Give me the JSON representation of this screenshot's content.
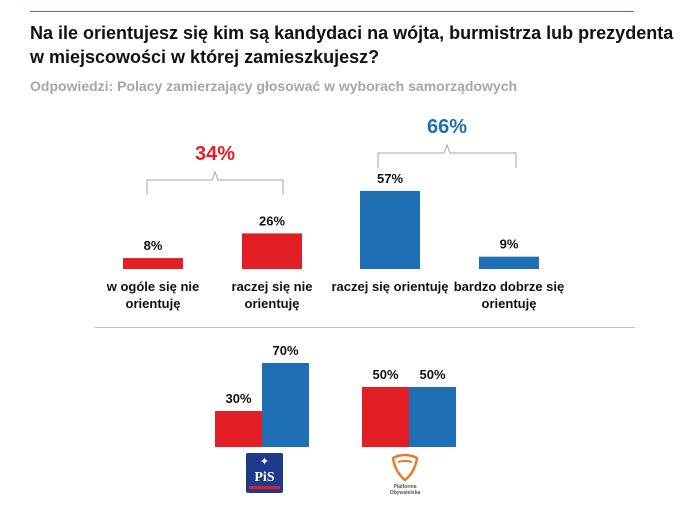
{
  "title": "Na ile orientujesz się kim są kandydaci na wójta, burmistrza  lub prezydenta w miejscowości w której zamieszkujesz?",
  "subtitle": "Odpowiedzi: Polacy zamierzający głosować w wyborach samorządowych",
  "colors": {
    "red": "#e31e24",
    "blue": "#1f6fb4",
    "red_text": "#e31e24",
    "blue_text": "#1f6fb4"
  },
  "chart_data": [
    {
      "type": "bar",
      "categories": [
        "w ogóle się nie orientuję",
        "raczej się nie orientuję",
        "raczej się orientuję",
        "bardzo dobrze się orientuję"
      ],
      "category_lines": [
        [
          "w ogóle się nie",
          "orientuję"
        ],
        [
          "raczej się nie",
          "orientuję"
        ],
        [
          "raczej się orientuję"
        ],
        [
          "bardzo dobrze się",
          "orientuję"
        ]
      ],
      "values": [
        8,
        26,
        57,
        9
      ],
      "value_labels": [
        "8%",
        "26%",
        "57%",
        "9%"
      ],
      "bar_colors": [
        "red",
        "red",
        "blue",
        "blue"
      ],
      "groups": [
        {
          "label": "34%",
          "color": "red",
          "from": 0,
          "to": 1
        },
        {
          "label": "66%",
          "color": "blue",
          "from": 2,
          "to": 3
        }
      ]
    },
    {
      "type": "bar",
      "group_by": [
        "PiS",
        "Platforma Obywatelska"
      ],
      "series": [
        {
          "color": "red",
          "values": [
            30,
            50
          ],
          "value_labels": [
            "30%",
            "50%"
          ]
        },
        {
          "color": "blue",
          "values": [
            70,
            50
          ],
          "value_labels": [
            "70%",
            "50%"
          ]
        }
      ]
    }
  ],
  "logos": {
    "pis": {
      "icon": "pis-party-logo",
      "text": "PiS"
    },
    "po": {
      "icon": "platforma-obywatelska-logo",
      "text_lines": [
        "Platforma",
        "Obywatelska"
      ]
    }
  }
}
